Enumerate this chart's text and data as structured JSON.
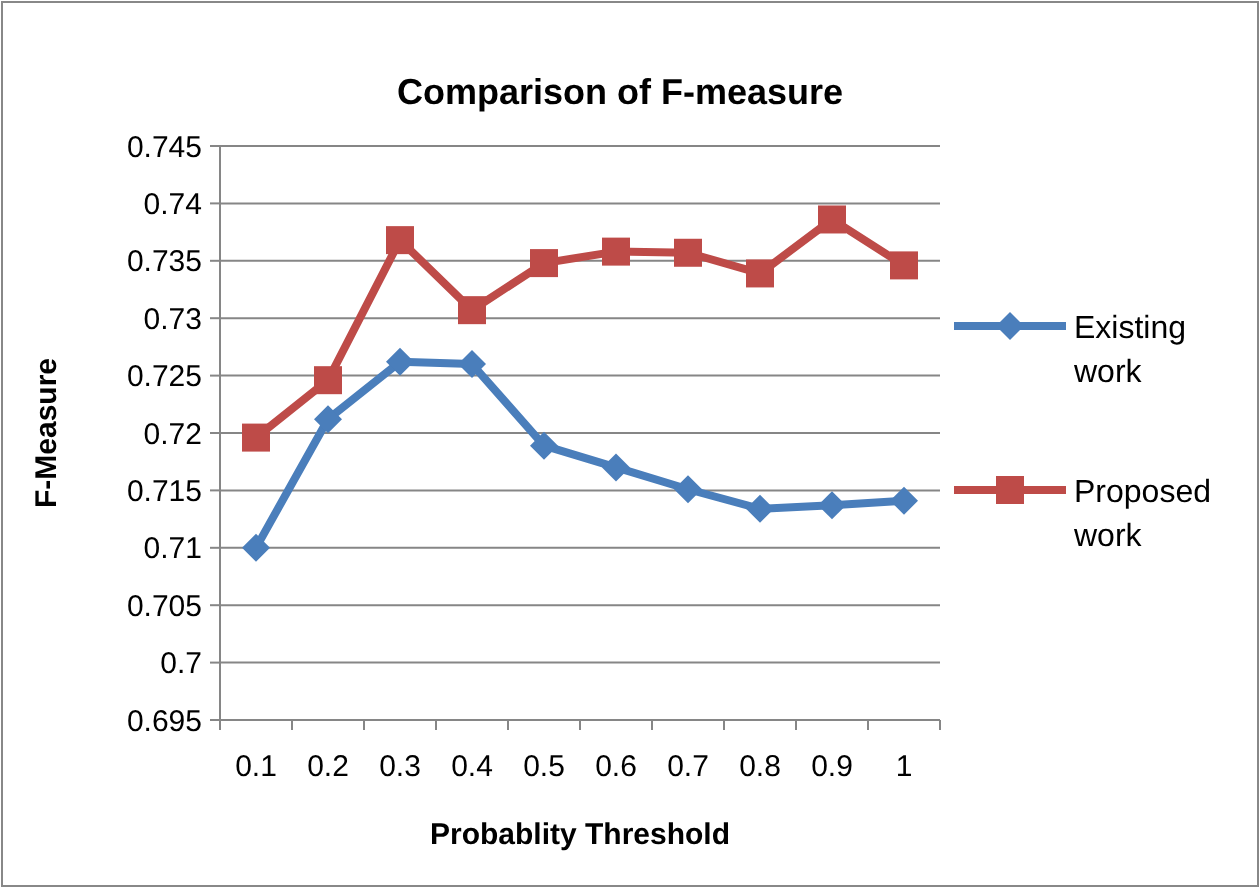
{
  "chart_data": {
    "type": "line",
    "title": "Comparison of F-measure",
    "xlabel": "Probablity Threshold",
    "ylabel": "F-Measure",
    "categories": [
      "0.1",
      "0.2",
      "0.3",
      "0.4",
      "0.5",
      "0.6",
      "0.7",
      "0.8",
      "0.9",
      "1"
    ],
    "series": [
      {
        "name": "Existing work",
        "color": "#4a7ebb",
        "marker": "diamond",
        "values": [
          0.71,
          0.7212,
          0.7262,
          0.726,
          0.7189,
          0.717,
          0.7151,
          0.7134,
          0.7137,
          0.7141
        ]
      },
      {
        "name": "Proposed work",
        "color": "#be4b48",
        "marker": "square",
        "values": [
          0.7196,
          0.7246,
          0.7368,
          0.7307,
          0.7348,
          0.7358,
          0.7357,
          0.7339,
          0.7386,
          0.7346
        ]
      }
    ],
    "ylim": [
      0.695,
      0.745
    ],
    "yticks": [
      0.695,
      0.7,
      0.705,
      0.71,
      0.715,
      0.72,
      0.725,
      0.73,
      0.735,
      0.74,
      0.745
    ],
    "grid": "y",
    "legend": "right"
  }
}
